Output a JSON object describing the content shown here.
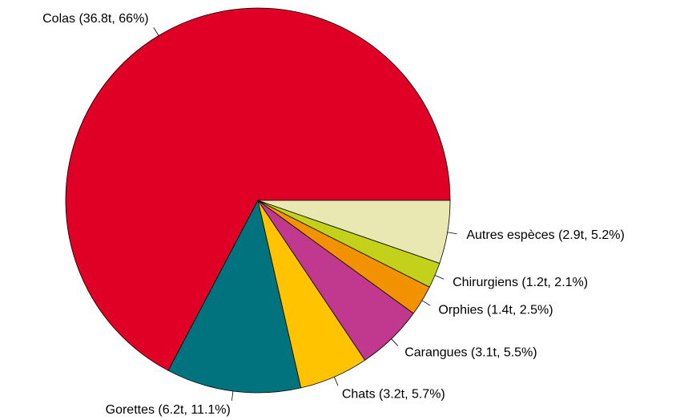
{
  "chart_data": {
    "type": "pie",
    "categories": [
      "Colas (36.8t, 66%)",
      "Gorettes (6.2t, 11.1%)",
      "Chats (3.2t, 5.7%)",
      "Carangues (3.1t, 5.5%)",
      "Orphies (1.4t, 2.5%)",
      "Chirurgiens (1.2t, 2.1%)",
      "Autres espèces (2.9t, 5.2%)"
    ],
    "values": [
      66,
      11.1,
      5.7,
      5.5,
      2.5,
      2.1,
      5.2
    ],
    "colors": [
      "#e00026",
      "#00737f",
      "#ffc300",
      "#c0398e",
      "#f39200",
      "#c3d11b",
      "#e9e8b2"
    ],
    "start_angle": 0,
    "direction": "counterclockwise"
  }
}
